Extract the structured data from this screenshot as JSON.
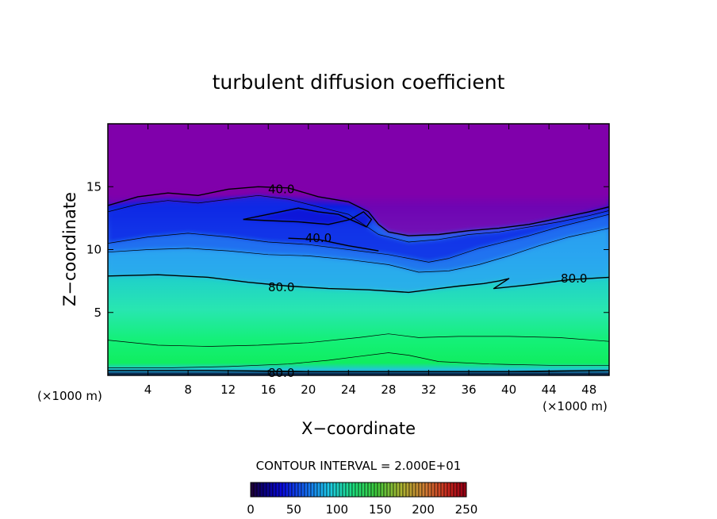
{
  "chart_data": {
    "type": "heatmap",
    "title": "turbulent diffusion coefficient",
    "xlabel": "X−coordinate",
    "ylabel": "Z−coordinate",
    "x_unit_left": "(×1000 m)",
    "x_unit_right": "(×1000 m)",
    "xlim": [
      0,
      50
    ],
    "ylim": [
      0,
      20
    ],
    "x_ticks": [
      4,
      8,
      12,
      16,
      20,
      24,
      28,
      32,
      36,
      40,
      44,
      48
    ],
    "y_ticks": [
      5,
      10,
      15
    ],
    "contour_interval_text": "CONTOUR INTERVAL = 2.000E+01",
    "colorbar": {
      "min": 0,
      "max": 250,
      "ticks": [
        0,
        50,
        100,
        150,
        200,
        250
      ]
    },
    "contour_labels": [
      {
        "text": "40.0",
        "x": 17.3,
        "z": 14.8
      },
      {
        "text": "40.0",
        "x": 21.0,
        "z": 10.9
      },
      {
        "text": "80.0",
        "x": 17.3,
        "z": 7.0
      },
      {
        "text": "80.0",
        "x": 46.5,
        "z": 7.7
      },
      {
        "text": "80.0",
        "x": 17.3,
        "z": 0.2
      }
    ],
    "contours": [
      {
        "level": 40,
        "points": [
          [
            0,
            13.5
          ],
          [
            3,
            14.2
          ],
          [
            6,
            14.5
          ],
          [
            9,
            14.3
          ],
          [
            12,
            14.8
          ],
          [
            15,
            15.0
          ],
          [
            18,
            14.9
          ],
          [
            21,
            14.2
          ],
          [
            24,
            13.8
          ],
          [
            26,
            13.0
          ],
          [
            27,
            12.0
          ],
          [
            28,
            11.4
          ],
          [
            30,
            11.1
          ],
          [
            33,
            11.2
          ],
          [
            36,
            11.5
          ],
          [
            39,
            11.7
          ],
          [
            42,
            12.0
          ],
          [
            45,
            12.5
          ],
          [
            48,
            13.0
          ],
          [
            50,
            13.4
          ]
        ]
      },
      {
        "level": 40,
        "points": [
          [
            13.5,
            12.4
          ],
          [
            16,
            12.8
          ],
          [
            19,
            13.3
          ],
          [
            21,
            13.0
          ],
          [
            23,
            12.8
          ],
          [
            25,
            12.1
          ],
          [
            25.8,
            11.8
          ],
          [
            26.3,
            12.4
          ],
          [
            25.5,
            13.0
          ],
          [
            24.2,
            12.4
          ],
          [
            22,
            12.0
          ],
          [
            19,
            12.2
          ],
          [
            16,
            12.3
          ],
          [
            13.5,
            12.4
          ]
        ]
      },
      {
        "level": 40,
        "points": [
          [
            18,
            10.9
          ],
          [
            21,
            10.8
          ],
          [
            24,
            10.3
          ],
          [
            27,
            9.9
          ]
        ]
      },
      {
        "level": 60,
        "points": [
          [
            0,
            13.0
          ],
          [
            3,
            13.6
          ],
          [
            6,
            13.9
          ],
          [
            9,
            13.7
          ],
          [
            12,
            14.0
          ],
          [
            15,
            14.3
          ],
          [
            18,
            14.0
          ],
          [
            21,
            13.4
          ],
          [
            24,
            12.8
          ],
          [
            27,
            11.2
          ],
          [
            30,
            10.6
          ],
          [
            33,
            10.8
          ],
          [
            36,
            11.2
          ],
          [
            39,
            11.4
          ],
          [
            42,
            11.8
          ],
          [
            45,
            12.2
          ],
          [
            48,
            12.7
          ],
          [
            50,
            13.1
          ]
        ]
      },
      {
        "level": 60,
        "points": [
          [
            0,
            10.5
          ],
          [
            4,
            11.0
          ],
          [
            8,
            11.3
          ],
          [
            12,
            11.0
          ],
          [
            16,
            10.6
          ],
          [
            20,
            10.4
          ],
          [
            24,
            10.0
          ],
          [
            28,
            9.6
          ],
          [
            32,
            9.0
          ],
          [
            34,
            9.3
          ],
          [
            37,
            10.1
          ],
          [
            40,
            10.7
          ],
          [
            42,
            11.1
          ],
          [
            45,
            11.8
          ],
          [
            48,
            12.4
          ],
          [
            50,
            12.8
          ]
        ]
      },
      {
        "level": 60,
        "points": [
          [
            0,
            9.8
          ],
          [
            4,
            10.0
          ],
          [
            8,
            10.1
          ],
          [
            12,
            9.9
          ],
          [
            16,
            9.6
          ],
          [
            20,
            9.5
          ],
          [
            24,
            9.2
          ],
          [
            28,
            8.8
          ],
          [
            31,
            8.2
          ],
          [
            34,
            8.3
          ],
          [
            37,
            8.8
          ],
          [
            40,
            9.5
          ],
          [
            43,
            10.3
          ],
          [
            46,
            11.0
          ],
          [
            50,
            11.7
          ]
        ]
      },
      {
        "level": 80,
        "points": [
          [
            0,
            7.9
          ],
          [
            5,
            8.0
          ],
          [
            10,
            7.8
          ],
          [
            14,
            7.4
          ],
          [
            18,
            7.1
          ],
          [
            22,
            6.9
          ],
          [
            26,
            6.8
          ],
          [
            30,
            6.6
          ],
          [
            33,
            6.9
          ],
          [
            35,
            7.1
          ],
          [
            37.5,
            7.3
          ],
          [
            39,
            7.5
          ],
          [
            40,
            7.7
          ],
          [
            38.5,
            6.9
          ],
          [
            42,
            7.2
          ],
          [
            46,
            7.6
          ],
          [
            50,
            7.8
          ]
        ]
      },
      {
        "level": 100,
        "points": [
          [
            0,
            2.8
          ],
          [
            5,
            2.4
          ],
          [
            10,
            2.3
          ],
          [
            15,
            2.4
          ],
          [
            20,
            2.6
          ],
          [
            25,
            3.0
          ],
          [
            28,
            3.3
          ],
          [
            31,
            3.0
          ],
          [
            35,
            3.1
          ],
          [
            40,
            3.1
          ],
          [
            45,
            3.0
          ],
          [
            50,
            2.7
          ]
        ]
      },
      {
        "level": 100,
        "points": [
          [
            0,
            0.6
          ],
          [
            6,
            0.6
          ],
          [
            12,
            0.7
          ],
          [
            18,
            0.9
          ],
          [
            22,
            1.2
          ],
          [
            25,
            1.5
          ],
          [
            28,
            1.8
          ],
          [
            30,
            1.6
          ],
          [
            33,
            1.1
          ],
          [
            38,
            0.9
          ],
          [
            44,
            0.8
          ],
          [
            50,
            0.8
          ]
        ]
      },
      {
        "level": 80,
        "points": [
          [
            0,
            0.4
          ],
          [
            10,
            0.4
          ],
          [
            20,
            0.3
          ],
          [
            30,
            0.3
          ],
          [
            40,
            0.3
          ],
          [
            50,
            0.4
          ]
        ]
      },
      {
        "level": 60,
        "points": [
          [
            0,
            0.25
          ],
          [
            50,
            0.25
          ]
        ]
      },
      {
        "level": 40,
        "points": [
          [
            0,
            0.12
          ],
          [
            50,
            0.12
          ]
        ]
      }
    ],
    "grid": false,
    "legend": "colorbar-bottom"
  }
}
